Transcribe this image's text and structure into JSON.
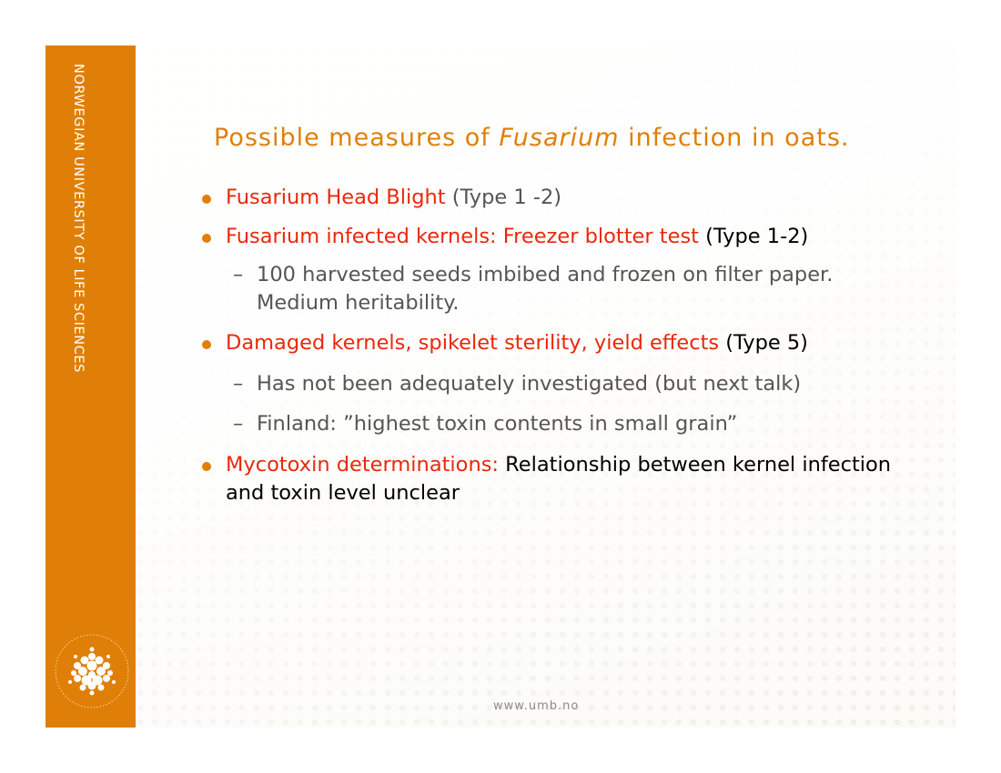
{
  "sidebar": {
    "university": "NORWEGIAN UNIVERSITY OF LIFE SCIENCES",
    "logo_icon": "university-seal-icon",
    "seal_text": "NORWEGIAN UNIVERSITY OF LIFE SCIENCES"
  },
  "title": {
    "before": "Possible measures of ",
    "italic": "Fusarium",
    "after": " infection in oats."
  },
  "items": [
    {
      "level": 1,
      "red": "Fusarium Head Blight",
      "rest": " (Type 1 -2)"
    },
    {
      "level": 1,
      "red": "Fusarium infected kernels: Freezer blotter test",
      "rest": " (Type 1-2)"
    },
    {
      "level": 2,
      "text": "100 harvested seeds imbibed and frozen on filter paper. Medium heritability."
    },
    {
      "level": 1,
      "red": "Damaged kernels, spikelet sterility, yield effects",
      "rest": " (Type 5)"
    },
    {
      "level": 2,
      "text": "Has not been adequately investigated (but next talk)"
    },
    {
      "level": 2,
      "text": "Finland: ”highest toxin contents in small grain”"
    },
    {
      "level": 1,
      "red": "Mycotoxin determinations:",
      "rest": " Relationship between kernel infection and toxin level unclear"
    }
  ],
  "footer": {
    "url": "www.umb.no"
  },
  "colors": {
    "brand_orange": "#e07f07",
    "highlight_red": "#e8290b",
    "sub_text_grey": "#555555"
  }
}
